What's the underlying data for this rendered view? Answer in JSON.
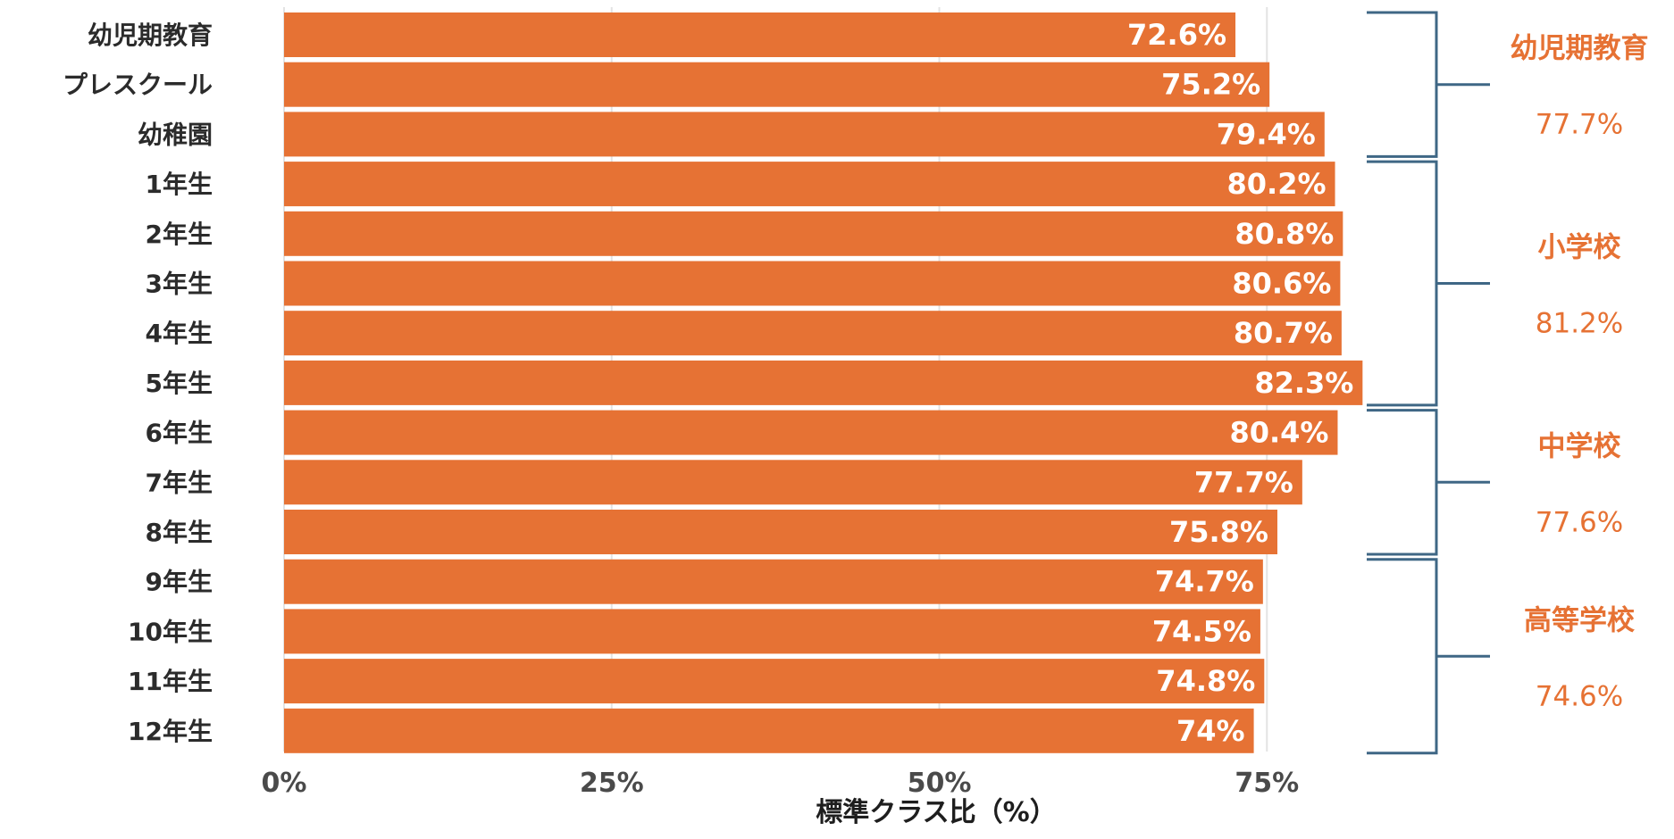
{
  "chart_data": {
    "type": "bar",
    "orientation": "horizontal",
    "categories": [
      "幼児期教育",
      "プレスクール",
      "幼稚園",
      "1年生",
      "2年生",
      "3年生",
      "4年生",
      "5年生",
      "6年生",
      "7年生",
      "8年生",
      "9年生",
      "10年生",
      "11年生",
      "12年生"
    ],
    "values": [
      72.6,
      75.2,
      79.4,
      80.2,
      80.8,
      80.6,
      80.7,
      82.3,
      80.4,
      77.7,
      75.8,
      74.7,
      74.5,
      74.8,
      74
    ],
    "value_labels": [
      "72.6%",
      "75.2%",
      "79.4%",
      "80.2%",
      "80.8%",
      "80.6%",
      "80.7%",
      "82.3%",
      "80.4%",
      "77.7%",
      "75.8%",
      "74.7%",
      "74.5%",
      "74.8%",
      "74%"
    ],
    "xlabel": "標準クラス比（%）",
    "ylabel": "",
    "xlim": [
      0,
      82.3
    ],
    "xticks": [
      0,
      25,
      50,
      75
    ],
    "xtick_labels": [
      "0%",
      "25%",
      "50%",
      "75%"
    ],
    "grid": "vertical",
    "groups": [
      {
        "name": "幼児期教育",
        "value": "77.7%",
        "start_index": 0,
        "end_index": 2
      },
      {
        "name": "小学校",
        "value": "81.2%",
        "start_index": 3,
        "end_index": 7
      },
      {
        "name": "中学校",
        "value": "77.6%",
        "start_index": 8,
        "end_index": 10
      },
      {
        "name": "高等学校",
        "value": "74.6%",
        "start_index": 11,
        "end_index": 14
      }
    ],
    "colors": {
      "bar": "#E67234",
      "group_text": "#E67234",
      "bracket": "#3F6785",
      "grid": "#e3e3e3"
    }
  }
}
